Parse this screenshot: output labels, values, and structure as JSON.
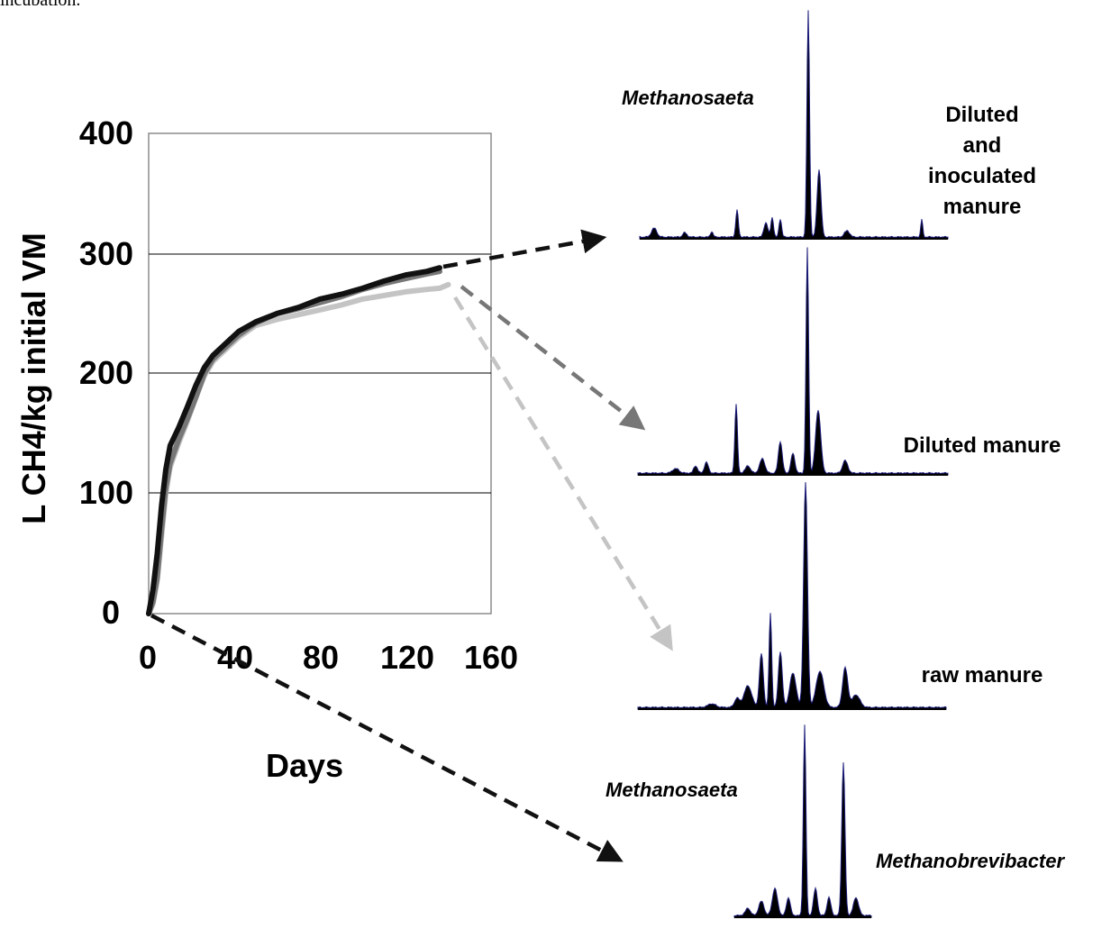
{
  "top_caption": "incubation.",
  "chart_data": {
    "type": "line",
    "ylabel": "L CH4/kg initial VM",
    "xlabel": "Days",
    "xlim": [
      0,
      160
    ],
    "ylim": [
      0,
      400
    ],
    "x_ticks": [
      "0",
      "40",
      "80",
      "120",
      "160"
    ],
    "y_ticks": [
      "0",
      "100",
      "200",
      "300",
      "400"
    ],
    "grid": "horizontal",
    "series": [
      {
        "color": "#111111",
        "x": [
          0,
          2,
          4,
          6,
          8,
          10,
          14,
          18,
          22,
          26,
          30,
          36,
          42,
          50,
          60,
          70,
          80,
          90,
          100,
          110,
          120,
          130,
          136
        ],
        "y": [
          0,
          20,
          50,
          90,
          120,
          140,
          155,
          172,
          190,
          205,
          215,
          225,
          235,
          243,
          250,
          255,
          262,
          266,
          271,
          277,
          282,
          285,
          288
        ]
      },
      {
        "color": "#777777",
        "x": [
          0,
          2,
          4,
          6,
          8,
          10,
          14,
          18,
          22,
          26,
          30,
          36,
          42,
          50,
          60,
          70,
          80,
          90,
          100,
          110,
          120,
          130,
          136
        ],
        "y": [
          0,
          10,
          30,
          70,
          105,
          125,
          145,
          162,
          180,
          200,
          212,
          222,
          232,
          242,
          250,
          254,
          259,
          264,
          270,
          275,
          279,
          283,
          285
        ]
      },
      {
        "color": "#c4c4c4",
        "x": [
          0,
          2,
          4,
          6,
          8,
          10,
          14,
          18,
          22,
          26,
          30,
          36,
          42,
          50,
          60,
          70,
          80,
          90,
          100,
          110,
          120,
          130,
          136,
          140
        ],
        "y": [
          0,
          8,
          28,
          65,
          100,
          122,
          142,
          160,
          180,
          198,
          210,
          220,
          230,
          240,
          245,
          249,
          253,
          257,
          262,
          265,
          268,
          270,
          271,
          274
        ]
      }
    ]
  },
  "panels": [
    {
      "label_lines": [
        "Diluted",
        "and",
        "inoculated",
        "manure"
      ],
      "taxa": [
        "Methanosaeta"
      ]
    },
    {
      "label_lines": [
        "Diluted manure"
      ],
      "taxa": []
    },
    {
      "label_lines": [
        "raw manure"
      ],
      "taxa": []
    },
    {
      "label_lines": [],
      "taxa": [
        "Methanosaeta",
        "Methanobrevibacter"
      ]
    }
  ],
  "colors": {
    "arrow_dark": "#111111",
    "arrow_mid": "#777777",
    "arrow_light": "#c4c4c4",
    "peak_fill": "#000000",
    "peak_outline": "#1a1a7a"
  }
}
